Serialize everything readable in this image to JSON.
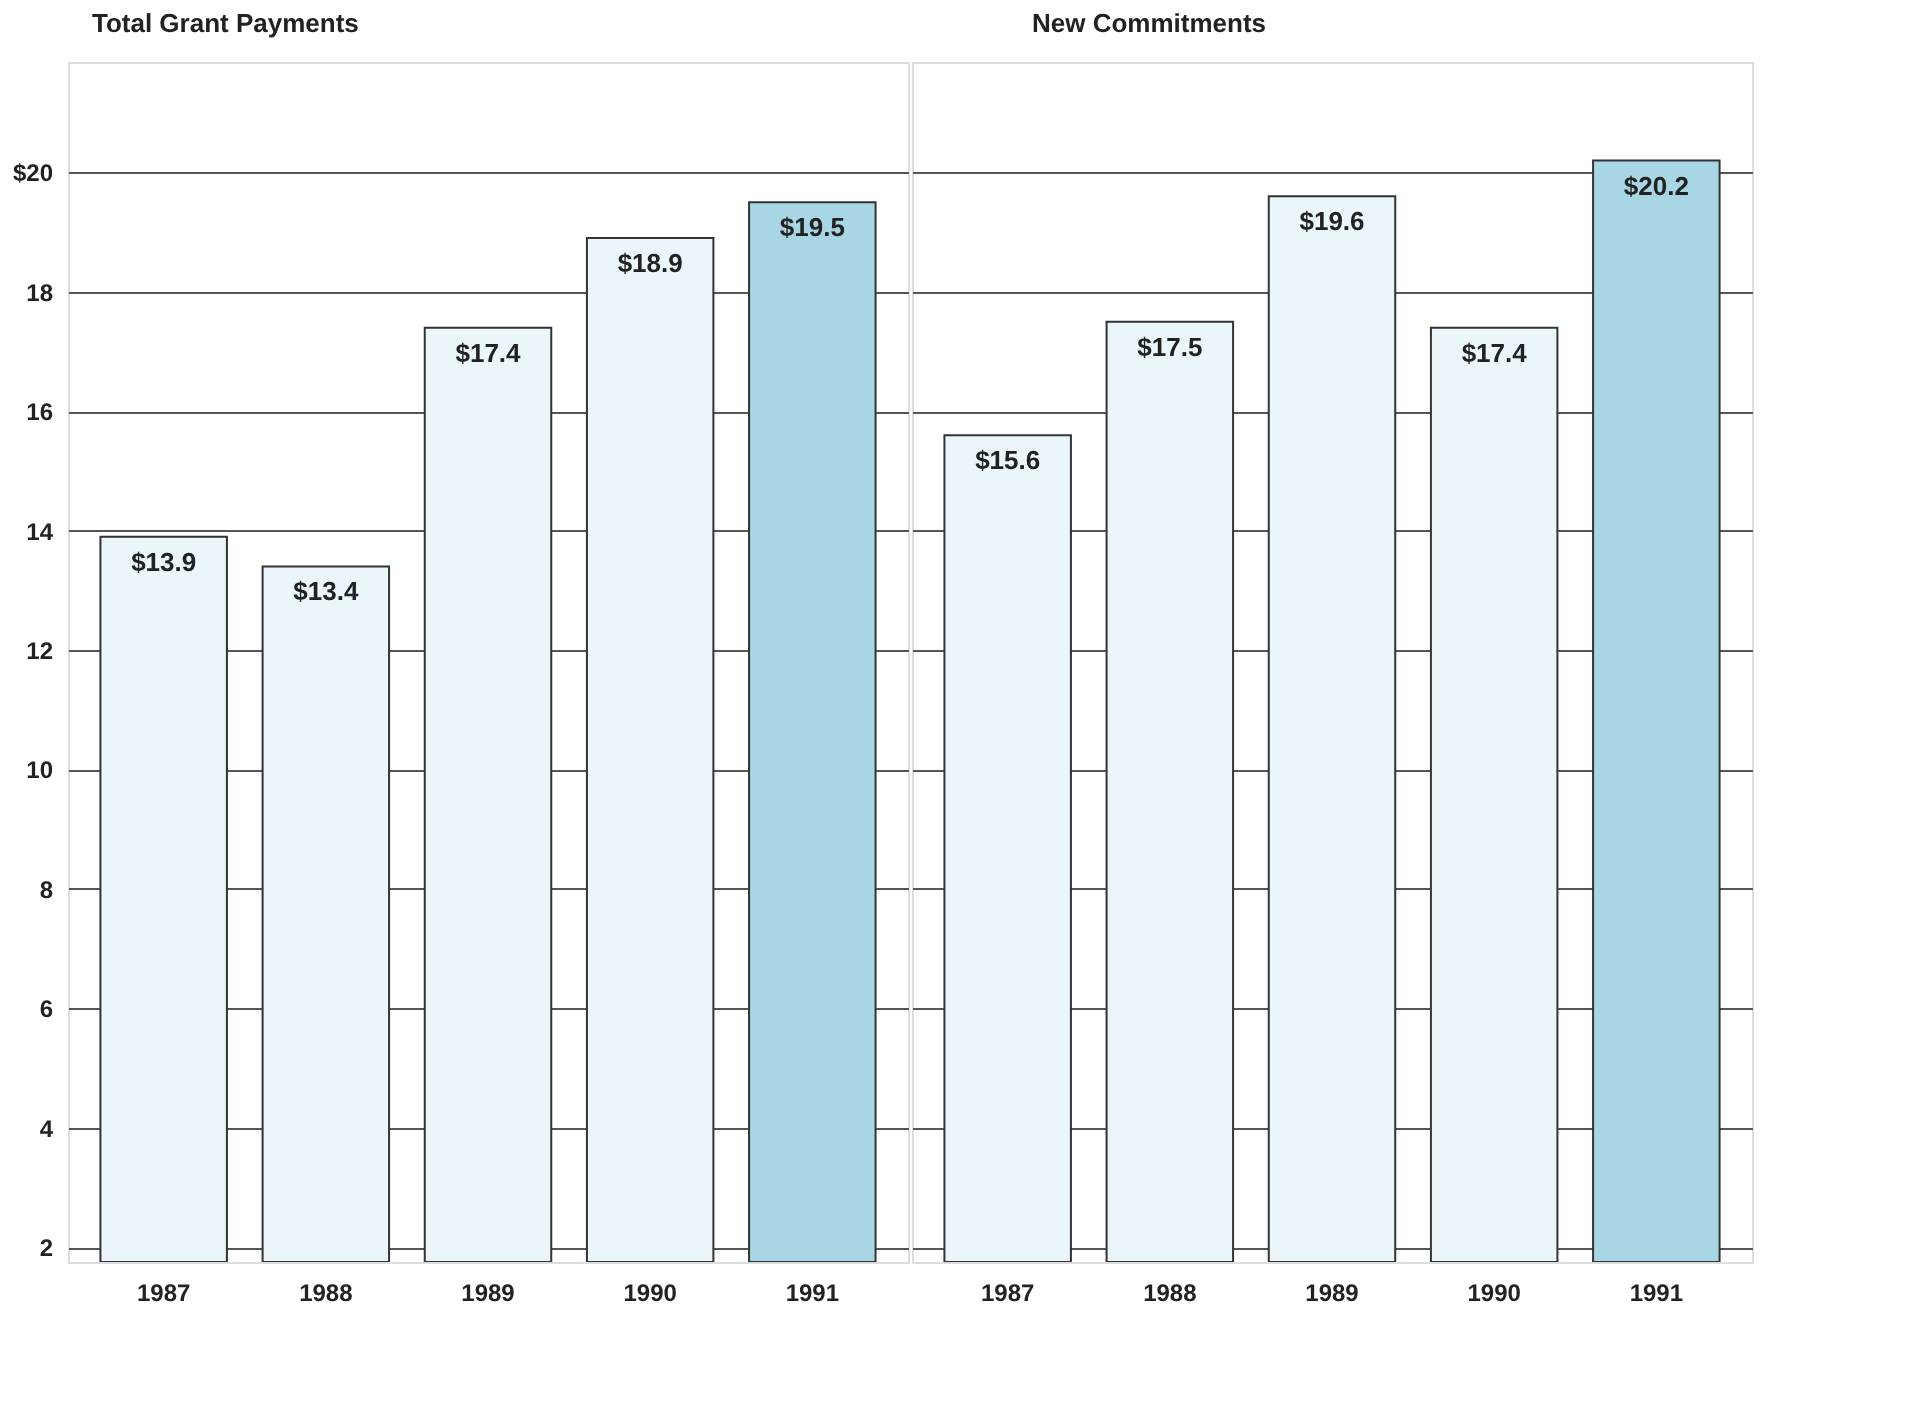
{
  "chart_data": [
    {
      "type": "bar",
      "title": "Total Grant Payments",
      "categories": [
        "1987",
        "1988",
        "1989",
        "1990",
        "1991"
      ],
      "values": [
        13.9,
        13.4,
        17.4,
        18.9,
        19.5
      ],
      "colors": [
        "#eaf6fa",
        "#eaf6fa",
        "#eaf6fa",
        "#eaf6fa",
        "#a9d6e4"
      ],
      "value_labels": [
        "$13.9",
        "$13.4",
        "$17.4",
        "$18.9",
        "$19.5"
      ],
      "ylim": [
        1.75,
        21.85
      ],
      "yticks": [
        2,
        4,
        6,
        8,
        10,
        12,
        14,
        16,
        18,
        {
          "value": 20,
          "label": "$20"
        }
      ],
      "grid": "y"
    },
    {
      "type": "bar",
      "title": "New Commitments",
      "categories": [
        "1987",
        "1988",
        "1989",
        "1990",
        "1991"
      ],
      "values": [
        15.6,
        17.5,
        19.6,
        17.4,
        20.2
      ],
      "colors": [
        "#eaf6fa",
        "#eaf6fa",
        "#eaf6fa",
        "#eaf6fa",
        "#a9d6e4"
      ],
      "value_labels": [
        "$15.6",
        "$17.5",
        "$19.6",
        "$17.4",
        "$20.2"
      ],
      "ylim": [
        1.75,
        21.85
      ],
      "yticks": [
        2,
        4,
        6,
        8,
        10,
        12,
        14,
        16,
        18,
        20
      ],
      "grid": "y",
      "tick_labels": "x"
    }
  ]
}
